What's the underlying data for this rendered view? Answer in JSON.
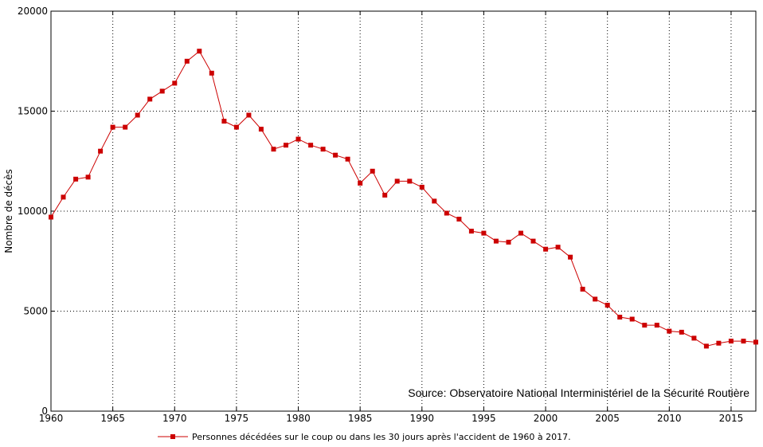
{
  "chart_data": {
    "type": "line",
    "title": "",
    "xlabel": "",
    "ylabel": "Nombre de décès",
    "xlim": [
      1960,
      2017
    ],
    "ylim": [
      0,
      20000
    ],
    "x_ticks": [
      "1960",
      "1965",
      "1970",
      "1975",
      "1980",
      "1985",
      "1990",
      "1995",
      "2000",
      "2005",
      "2010",
      "2015"
    ],
    "y_ticks": [
      "0",
      "5000",
      "10000",
      "15000",
      "20000"
    ],
    "grid": true,
    "legend_position": "bottom-center",
    "annotation": "Source: Observatoire National Interministériel de la Sécurité Routière",
    "series": [
      {
        "name": "Personnes décédées sur le coup ou dans les 30 jours après l'accident de 1960 à 2017.",
        "color": "#cc0000",
        "x": [
          1960,
          1961,
          1962,
          1963,
          1964,
          1965,
          1966,
          1967,
          1968,
          1969,
          1970,
          1971,
          1972,
          1973,
          1974,
          1975,
          1976,
          1977,
          1978,
          1979,
          1980,
          1981,
          1982,
          1983,
          1984,
          1985,
          1986,
          1987,
          1988,
          1989,
          1990,
          1991,
          1992,
          1993,
          1994,
          1995,
          1996,
          1997,
          1998,
          1999,
          2000,
          2001,
          2002,
          2003,
          2004,
          2005,
          2006,
          2007,
          2008,
          2009,
          2010,
          2011,
          2012,
          2013,
          2014,
          2015,
          2016,
          2017
        ],
        "values": [
          9700,
          10700,
          11600,
          11700,
          13000,
          14200,
          14200,
          14800,
          15600,
          16000,
          16400,
          17500,
          18000,
          16900,
          14500,
          14200,
          14800,
          14100,
          13100,
          13300,
          13600,
          13300,
          13100,
          12800,
          12600,
          11400,
          12000,
          10800,
          11500,
          11500,
          11200,
          10500,
          9900,
          9600,
          9000,
          8900,
          8500,
          8450,
          8900,
          8500,
          8100,
          8200,
          7700,
          6100,
          5600,
          5300,
          4700,
          4600,
          4300,
          4300,
          4000,
          3950,
          3650,
          3250,
          3400,
          3500,
          3500,
          3450
        ]
      }
    ]
  }
}
